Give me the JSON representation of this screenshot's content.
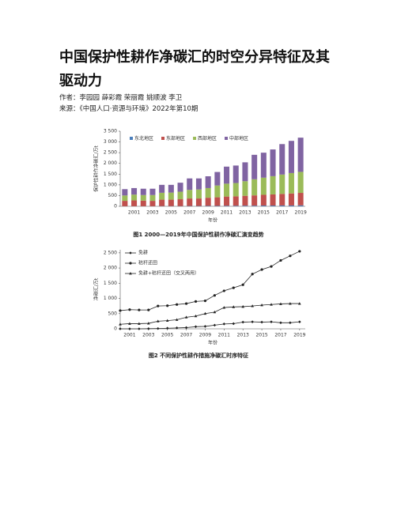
{
  "document": {
    "title": "中国保护性耕作净碳汇的时空分异特征及其驱动力",
    "author": "作者：李园园 薛彩霞 荣丽霞 姚顺波 李卫",
    "source": "来源：《中国人口·资源与环境》2022年第10期"
  },
  "chart_data": [
    {
      "type": "bar",
      "stacked": true,
      "caption": "图1   2000—2019年中国保护性耕作净碳汇演变趋势",
      "ylabel": "保护性耕作净碳汇/万t",
      "xlabel": "年份",
      "categories": [
        null,
        "2001",
        null,
        "2003",
        null,
        "2005",
        null,
        "2007",
        null,
        "2009",
        null,
        "2011",
        null,
        "2013",
        null,
        "2015",
        null,
        "2017",
        null,
        "2019"
      ],
      "series": [
        {
          "name": "东北地区",
          "color": "#4a7ebb",
          "values": [
            5,
            5,
            5,
            5,
            10,
            10,
            10,
            15,
            15,
            20,
            20,
            25,
            25,
            30,
            30,
            35,
            35,
            40,
            40,
            45
          ]
        },
        {
          "name": "东部地区",
          "color": "#c0504d",
          "values": [
            250,
            270,
            260,
            250,
            300,
            300,
            320,
            350,
            350,
            380,
            400,
            430,
            440,
            460,
            480,
            500,
            520,
            540,
            560,
            580
          ]
        },
        {
          "name": "西部地区",
          "color": "#9bbb59",
          "values": [
            250,
            270,
            260,
            270,
            320,
            330,
            350,
            400,
            420,
            450,
            550,
            600,
            620,
            680,
            750,
            800,
            850,
            900,
            950,
            980
          ]
        },
        {
          "name": "中部地区",
          "color": "#8064a2",
          "values": [
            295,
            305,
            295,
            295,
            370,
            360,
            420,
            535,
            515,
            550,
            630,
            795,
            815,
            880,
            1140,
            1165,
            1245,
            1420,
            1500,
            1595
          ]
        }
      ],
      "ylim": [
        0,
        3500
      ],
      "yticks": [
        0,
        500,
        {
          "value": 1000,
          "label": "1 000"
        },
        {
          "value": 1500,
          "label": "1 500"
        },
        {
          "value": 2000,
          "label": "2 000"
        },
        {
          "value": 2500,
          "label": "2 500"
        },
        {
          "value": 3000,
          "label": "3 000"
        },
        {
          "value": 3500,
          "label": "3 500"
        }
      ],
      "legend": "top"
    },
    {
      "type": "line",
      "caption": "图2   不同保护性耕作措施净碳汇时序特征",
      "ylabel": "净碳汇/万t",
      "xlabel": "年份",
      "x": [
        2000,
        2001,
        2002,
        2003,
        2004,
        2005,
        2006,
        2007,
        2008,
        2009,
        2010,
        2011,
        2012,
        2013,
        2014,
        2015,
        2016,
        2017,
        2018,
        2019
      ],
      "series": [
        {
          "name": "免耕",
          "color": "#222222",
          "marker": "diamond",
          "values": [
            0,
            0,
            0,
            5,
            10,
            20,
            30,
            40,
            70,
            80,
            120,
            160,
            170,
            220,
            230,
            220,
            230,
            200,
            200,
            230
          ]
        },
        {
          "name": "秸秆还田",
          "color": "#222222",
          "marker": "circle",
          "values": [
            600,
            630,
            620,
            620,
            750,
            760,
            800,
            830,
            900,
            920,
            1100,
            1250,
            1350,
            1450,
            1800,
            1950,
            2050,
            2250,
            2400,
            2550
          ]
        },
        {
          "name": "免耕+秸秆还田（交叉两用）",
          "color": "#222222",
          "marker": "triangle",
          "values": [
            150,
            170,
            170,
            180,
            250,
            270,
            300,
            380,
            420,
            500,
            550,
            700,
            720,
            730,
            750,
            780,
            800,
            820,
            830,
            830
          ]
        }
      ],
      "xlim": [
        2000,
        2019.6
      ],
      "xticks": [
        2001,
        2003,
        2005,
        2007,
        2009,
        2011,
        2013,
        2015,
        2017,
        2019
      ],
      "ylim": [
        0,
        2600
      ],
      "yticks": [
        0,
        500,
        {
          "value": 1000,
          "label": "1 000"
        },
        {
          "value": 1500,
          "label": "1 500"
        },
        {
          "value": 2000,
          "label": "2 000"
        },
        {
          "value": 2500,
          "label": "2 500"
        }
      ],
      "legend": "upper left"
    }
  ]
}
